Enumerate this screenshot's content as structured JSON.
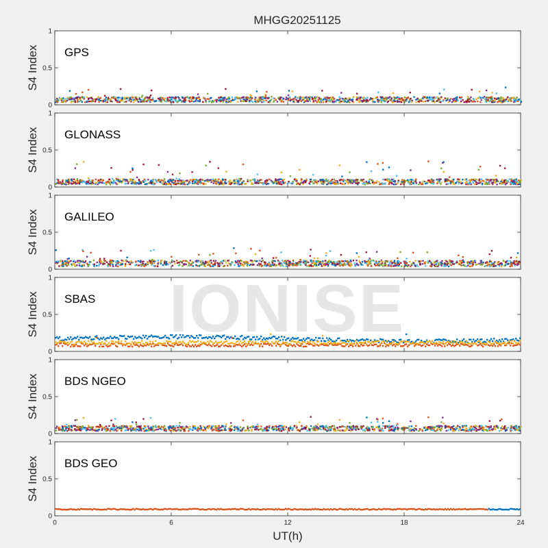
{
  "chart_data": {
    "type": "scatter",
    "title": "MHGG20251125",
    "xlabel": "UT(h)",
    "ylabel": "S4 Index",
    "xlim": [
      0,
      24
    ],
    "ylim": [
      0,
      1
    ],
    "x_ticks": [
      "0",
      "6",
      "12",
      "18",
      "24"
    ],
    "y_ticks": [
      "0",
      "0.5",
      "1"
    ],
    "watermark": "IONISE",
    "grid": false,
    "colors": [
      "#0072BD",
      "#D95319",
      "#EDB120",
      "#7E2F8E",
      "#77AC30",
      "#4DBEEE",
      "#A2142F"
    ],
    "panels": [
      {
        "name": "GPS",
        "typical_s4": 0.08,
        "max_s4": 0.22
      },
      {
        "name": "GLONASS",
        "typical_s4": 0.08,
        "max_s4": 0.35
      },
      {
        "name": "GALILEO",
        "typical_s4": 0.09,
        "max_s4": 0.26
      },
      {
        "name": "SBAS",
        "typical_s4": 0.14,
        "max_s4": 0.3
      },
      {
        "name": "BDS NGEO",
        "typical_s4": 0.08,
        "max_s4": 0.22
      },
      {
        "name": "BDS GEO",
        "typical_s4": 0.09,
        "max_s4": 0.12
      }
    ]
  }
}
